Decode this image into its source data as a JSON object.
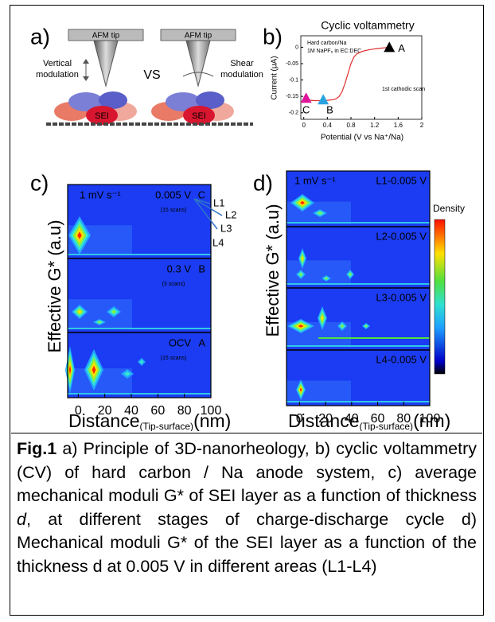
{
  "panel_a": {
    "label": "a)",
    "tip_left": "AFM tip",
    "tip_right": "AFM tip",
    "left_mode": [
      "Vertical",
      "modulation"
    ],
    "vs": "VS",
    "right_mode": [
      "Shear",
      "modulation"
    ],
    "sei_left": "SEI",
    "sei_right": "SEI"
  },
  "panel_b": {
    "label": "b)",
    "title": "Cyclic voltammetry",
    "notes": [
      "Hard carbon/Na",
      "1M NaPF₆ in EC:DEC"
    ],
    "ylabel": "Current (μA)",
    "xlabel": "Potential (V vs Na⁺/Na)",
    "annotation": "1st cathodic scan",
    "xlim": [
      -0.05,
      2
    ],
    "ylim": [
      -0.22,
      0.035
    ],
    "xticks": [
      0,
      0.4,
      0.8,
      1.2,
      1.6,
      2
    ],
    "yticks": [
      0,
      -0.05,
      -0.1,
      -0.15,
      -0.2
    ],
    "curve": {
      "x": [
        0,
        0.1,
        0.2,
        0.3,
        0.4,
        0.5,
        0.55,
        0.6,
        0.65,
        0.7,
        0.75,
        0.8,
        0.85,
        0.9,
        1.0,
        1.1,
        1.2,
        1.3,
        1.45
      ],
      "y": [
        -0.16,
        -0.162,
        -0.163,
        -0.163,
        -0.162,
        -0.16,
        -0.157,
        -0.15,
        -0.135,
        -0.11,
        -0.08,
        -0.05,
        -0.03,
        -0.02,
        -0.012,
        -0.008,
        -0.005,
        -0.003,
        0
      ]
    },
    "markers": [
      {
        "label": "A",
        "x": 1.45,
        "y": 0,
        "color": "#000000"
      },
      {
        "label": "B",
        "x": 0.33,
        "y": -0.16,
        "color": "#29a3e0"
      },
      {
        "label": "C",
        "x": 0.04,
        "y": -0.155,
        "color": "#e0169a"
      }
    ]
  },
  "panel_c": {
    "label": "c)",
    "rate": "1 mV s⁻¹",
    "ylabel": "Effective G* (a.u)",
    "xlabel": "Distance",
    "xlabel_sub": "(Tip-surface)",
    "xlabel_unit": "(nm)",
    "xlim": [
      -8,
      100
    ],
    "xticks": [
      0,
      20,
      40,
      60,
      80,
      100
    ],
    "bands": [
      {
        "state": "0.005 V",
        "point": "C",
        "scans": "(15 scans)"
      },
      {
        "state": "0.3 V",
        "point": "B",
        "scans": "(3 scans)"
      },
      {
        "state": "OCV",
        "point": "A",
        "scans": "(15 scans)"
      }
    ],
    "areas": [
      "L1",
      "L2",
      "L3",
      "L4"
    ]
  },
  "panel_d": {
    "label": "d)",
    "rate": "1 mV s⁻¹",
    "ylabel": "Effective G* (a.u)",
    "xlabel": "Distance",
    "xlabel_sub": "(Tip-surface)",
    "xlabel_unit": "(nm)",
    "xlim": [
      -10,
      100
    ],
    "xticks": [
      0,
      20,
      40,
      60,
      80,
      100
    ],
    "bands": [
      "L1-0.005 V",
      "L2-0.005 V",
      "L3-0.005 V",
      "L4-0.005 V"
    ],
    "colorbar": "Density"
  },
  "caption": {
    "label": "Fig.1",
    "text_1": " a) Principle of 3D-nanorheology, b) cyclic voltammetry (CV) of hard carbon / Na anode system, c) average mechanical moduli G* of SEI layer as a function of thickness ",
    "italic": "d",
    "text_2": ", at different stages of charge-discharge cycle d) Mechanical moduli G* of the SEI layer as a function of the thickness d at 0.005 V in different areas (L1-L4)"
  }
}
